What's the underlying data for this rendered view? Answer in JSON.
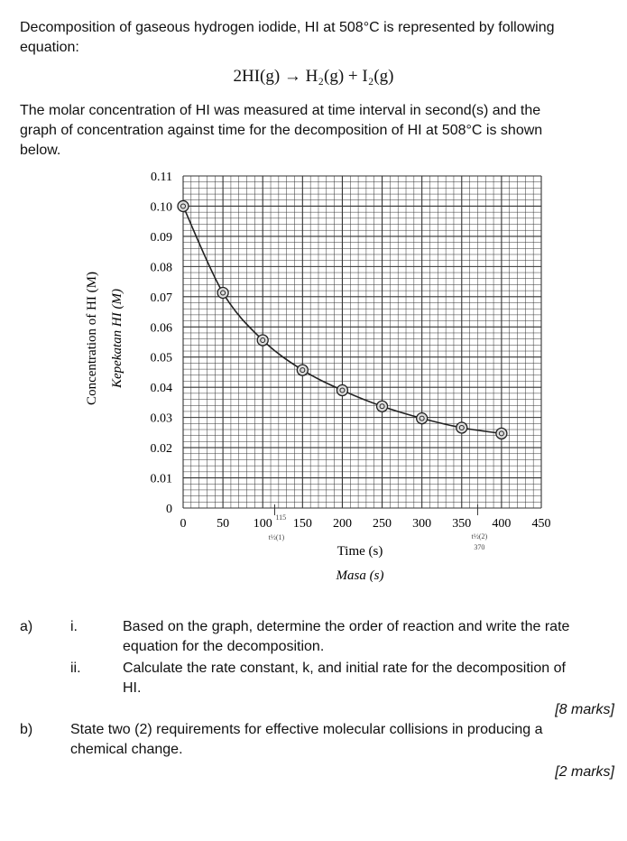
{
  "intro": {
    "line1": "Decomposition of gaseous hydrogen iodide, HI at 508°C is represented by following",
    "line2": "equation:",
    "equation": "2HI(g) → H₂(g) + I₂(g)",
    "para_line1": "The molar concentration of HI was measured at time interval in second(s) and the",
    "para_line2": "graph of concentration against time for the decomposition of HI at 508°C is shown",
    "para_line3": "below."
  },
  "chart_data": {
    "type": "line",
    "xlabel": "Time (s)",
    "xlabel_alt": "Masa (s)",
    "ylabel": "Concentration of HI (M)",
    "ylabel_alt": "Kepekatan HI (M)",
    "xlim": [
      0,
      450
    ],
    "ylim": [
      0,
      0.11
    ],
    "x_ticks": [
      "0",
      "50",
      "100",
      "150",
      "200",
      "250",
      "300",
      "350",
      "400",
      "450"
    ],
    "y_ticks": [
      "0",
      "0.01",
      "0.02",
      "0.03",
      "0.04",
      "0.05",
      "0.06",
      "0.07",
      "0.08",
      "0.09",
      "0.10",
      "0.11"
    ],
    "grid": true,
    "marker": "circled-dot",
    "series": [
      {
        "x": [
          0,
          50,
          100,
          150,
          200,
          250,
          300,
          350,
          400
        ],
        "y": [
          0.1,
          0.0713,
          0.0556,
          0.0457,
          0.039,
          0.0337,
          0.0297,
          0.0266,
          0.0247
        ]
      }
    ],
    "annotations": [
      {
        "text": "115",
        "x": 115
      },
      {
        "text": "t½(1)",
        "x": 115
      },
      {
        "text": "t½(2)",
        "x": 370
      },
      {
        "text": "370",
        "x": 370
      }
    ]
  },
  "questions": {
    "a_label": "a)",
    "a_i_label": "i.",
    "a_i_line1": "Based on the graph, determine the order of reaction and write the rate",
    "a_i_line2": "equation for the decomposition.",
    "a_ii_label": "ii.",
    "a_ii_line1": "Calculate the rate constant, k, and initial rate for the decomposition of",
    "a_ii_line2": "HI.",
    "a_marks": "[8 marks]",
    "b_label": "b)",
    "b_line1": "State two (2) requirements for effective molecular collisions in producing a",
    "b_line2": "chemical change.",
    "b_marks": "[2 marks]"
  }
}
